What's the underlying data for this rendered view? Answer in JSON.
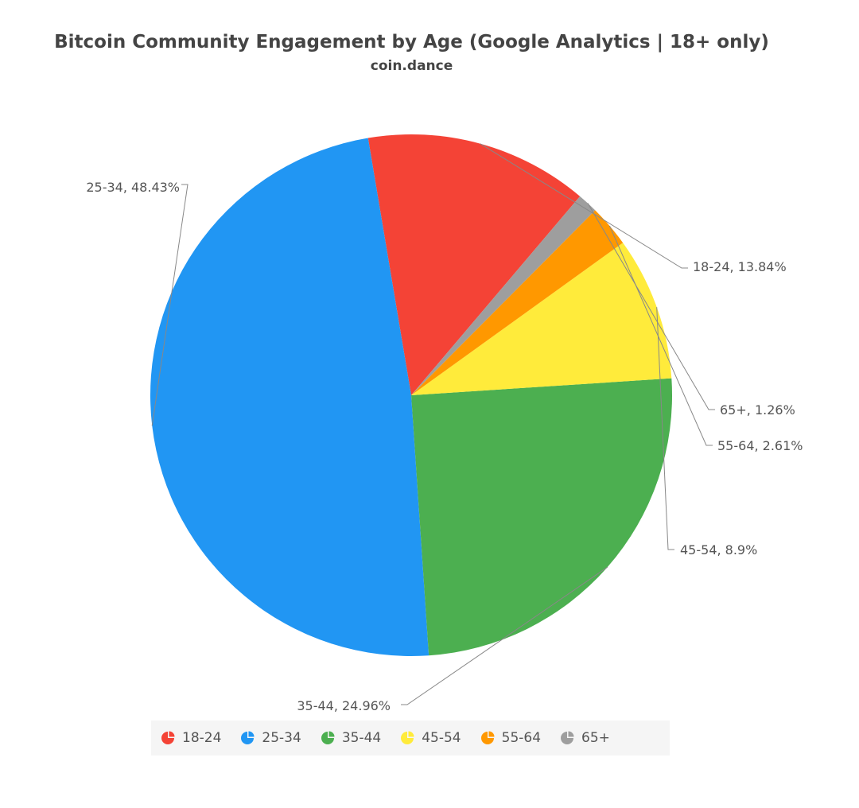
{
  "chart_data": {
    "type": "pie",
    "title": "Bitcoin Community Engagement by Age (Google Analytics | 18+ only)",
    "subtitle": "coin.dance",
    "legend_position": "bottom",
    "slices": [
      {
        "name": "18-24",
        "value": 13.84,
        "color": "#F44336",
        "label": "18-24, 13.84%"
      },
      {
        "name": "25-34",
        "value": 48.43,
        "color": "#2196F3",
        "label": "25-34, 48.43%"
      },
      {
        "name": "35-44",
        "value": 24.96,
        "color": "#4CAF50",
        "label": "35-44, 24.96%"
      },
      {
        "name": "45-54",
        "value": 8.9,
        "color": "#FFEB3B",
        "label": "45-54, 8.9%"
      },
      {
        "name": "55-64",
        "value": 2.61,
        "color": "#FF9800",
        "label": "55-64, 2.61%"
      },
      {
        "name": "65+",
        "value": 1.26,
        "color": "#9E9E9E",
        "label": "65+, 1.26%"
      }
    ]
  }
}
